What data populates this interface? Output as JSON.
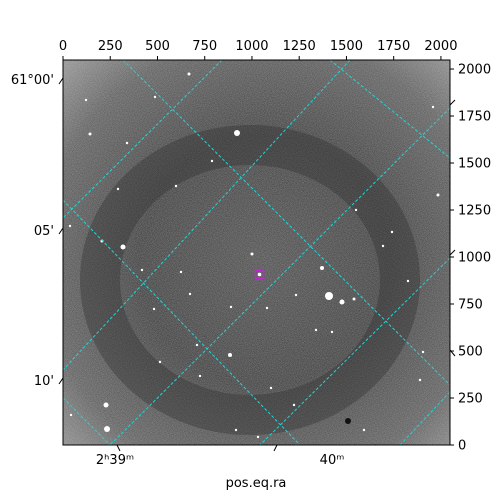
{
  "figure": {
    "xlabel": "pos.eq.ra",
    "pixel_axes": {
      "top_ticks": [
        "0",
        "250",
        "500",
        "750",
        "1000",
        "1250",
        "1500",
        "1750",
        "2000"
      ],
      "right_ticks": [
        "0",
        "250",
        "500",
        "750",
        "1000",
        "1250",
        "1500",
        "1750",
        "2000"
      ]
    },
    "world_axes": {
      "ra_ticks": [
        "2ʰ39ᵐ",
        "40ᵐ"
      ],
      "dec_ticks": [
        "61°00'",
        "05'",
        "10'"
      ]
    },
    "colors": {
      "grid": "#22d3d3",
      "marker": "#c026d3",
      "frame": "#000000"
    }
  }
}
